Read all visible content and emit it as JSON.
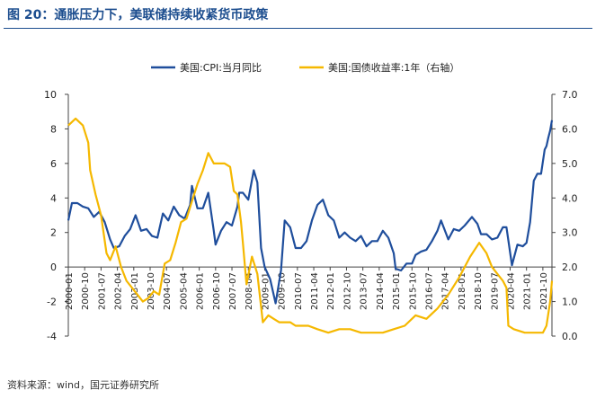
{
  "figure": {
    "title": "图 20：通胀压力下，美联储持续收紧货币政策",
    "source": "资料来源：wind，国元证券研究所"
  },
  "chart_data": {
    "type": "line",
    "title": "图 20：通胀压力下，美联储持续收紧货币政策",
    "xlabel": "",
    "ylabel": "",
    "y2label": "",
    "ylim": [
      -4,
      10
    ],
    "y2lim": [
      0.0,
      7.0
    ],
    "yticks": [
      "-4",
      "-2",
      "0",
      "2",
      "4",
      "6",
      "8",
      "10"
    ],
    "y2ticks": [
      "0.0",
      "1.0",
      "2.0",
      "3.0",
      "4.0",
      "5.0",
      "6.0",
      "7.0"
    ],
    "xlim": [
      "2000-01",
      "2022-03"
    ],
    "xticks": [
      "2000-01",
      "2000-10",
      "2001-07",
      "2002-04",
      "2003-01",
      "2003-10",
      "2004-07",
      "2005-04",
      "2006-01",
      "2006-10",
      "2007-07",
      "2008-04",
      "2009-01",
      "2009-10",
      "2010-07",
      "2011-04",
      "2012-01",
      "2012-10",
      "2013-07",
      "2014-04",
      "2015-01",
      "2015-10",
      "2016-07",
      "2017-04",
      "2018-01",
      "2018-10",
      "2019-07",
      "2020-04",
      "2021-01",
      "2021-10"
    ],
    "legend_position": "top",
    "grid": false,
    "series": [
      {
        "name": "美国:CPI:当月同比",
        "axis": "left",
        "color": "#1f4e9c",
        "points": [
          [
            "2000-01",
            2.7
          ],
          [
            "2000-03",
            3.7
          ],
          [
            "2000-06",
            3.7
          ],
          [
            "2000-09",
            3.5
          ],
          [
            "2000-12",
            3.4
          ],
          [
            "2001-03",
            2.9
          ],
          [
            "2001-06",
            3.2
          ],
          [
            "2001-09",
            2.6
          ],
          [
            "2001-12",
            1.6
          ],
          [
            "2002-02",
            1.1
          ],
          [
            "2002-05",
            1.2
          ],
          [
            "2002-08",
            1.8
          ],
          [
            "2002-11",
            2.2
          ],
          [
            "2003-02",
            3.0
          ],
          [
            "2003-05",
            2.1
          ],
          [
            "2003-08",
            2.2
          ],
          [
            "2003-11",
            1.8
          ],
          [
            "2004-02",
            1.7
          ],
          [
            "2004-05",
            3.1
          ],
          [
            "2004-08",
            2.7
          ],
          [
            "2004-11",
            3.5
          ],
          [
            "2005-02",
            3.0
          ],
          [
            "2005-05",
            2.8
          ],
          [
            "2005-08",
            3.6
          ],
          [
            "2005-09",
            4.7
          ],
          [
            "2005-12",
            3.4
          ],
          [
            "2006-03",
            3.4
          ],
          [
            "2006-06",
            4.3
          ],
          [
            "2006-09",
            2.1
          ],
          [
            "2006-10",
            1.3
          ],
          [
            "2007-01",
            2.1
          ],
          [
            "2007-04",
            2.6
          ],
          [
            "2007-07",
            2.4
          ],
          [
            "2007-10",
            3.5
          ],
          [
            "2007-11",
            4.3
          ],
          [
            "2008-01",
            4.3
          ],
          [
            "2008-04",
            3.9
          ],
          [
            "2008-07",
            5.6
          ],
          [
            "2008-09",
            4.9
          ],
          [
            "2008-11",
            1.1
          ],
          [
            "2009-01",
            0.0
          ],
          [
            "2009-04",
            -0.7
          ],
          [
            "2009-07",
            -2.1
          ],
          [
            "2009-10",
            -0.2
          ],
          [
            "2009-12",
            2.7
          ],
          [
            "2010-03",
            2.3
          ],
          [
            "2010-06",
            1.1
          ],
          [
            "2010-09",
            1.1
          ],
          [
            "2010-12",
            1.5
          ],
          [
            "2011-03",
            2.7
          ],
          [
            "2011-06",
            3.6
          ],
          [
            "2011-09",
            3.9
          ],
          [
            "2011-12",
            3.0
          ],
          [
            "2012-03",
            2.7
          ],
          [
            "2012-06",
            1.7
          ],
          [
            "2012-09",
            2.0
          ],
          [
            "2012-12",
            1.7
          ],
          [
            "2013-03",
            1.5
          ],
          [
            "2013-06",
            1.8
          ],
          [
            "2013-09",
            1.2
          ],
          [
            "2013-12",
            1.5
          ],
          [
            "2014-03",
            1.5
          ],
          [
            "2014-06",
            2.1
          ],
          [
            "2014-09",
            1.7
          ],
          [
            "2014-12",
            0.8
          ],
          [
            "2015-01",
            -0.1
          ],
          [
            "2015-04",
            -0.2
          ],
          [
            "2015-07",
            0.2
          ],
          [
            "2015-10",
            0.2
          ],
          [
            "2015-12",
            0.7
          ],
          [
            "2016-03",
            0.9
          ],
          [
            "2016-06",
            1.0
          ],
          [
            "2016-09",
            1.5
          ],
          [
            "2016-12",
            2.1
          ],
          [
            "2017-02",
            2.7
          ],
          [
            "2017-06",
            1.6
          ],
          [
            "2017-09",
            2.2
          ],
          [
            "2017-12",
            2.1
          ],
          [
            "2018-03",
            2.4
          ],
          [
            "2018-07",
            2.9
          ],
          [
            "2018-10",
            2.5
          ],
          [
            "2018-12",
            1.9
          ],
          [
            "2019-03",
            1.9
          ],
          [
            "2019-06",
            1.6
          ],
          [
            "2019-09",
            1.7
          ],
          [
            "2019-12",
            2.3
          ],
          [
            "2020-02",
            2.3
          ],
          [
            "2020-05",
            0.1
          ],
          [
            "2020-08",
            1.3
          ],
          [
            "2020-11",
            1.2
          ],
          [
            "2021-01",
            1.4
          ],
          [
            "2021-03",
            2.6
          ],
          [
            "2021-05",
            5.0
          ],
          [
            "2021-07",
            5.4
          ],
          [
            "2021-09",
            5.4
          ],
          [
            "2021-11",
            6.8
          ],
          [
            "2021-12",
            7.0
          ],
          [
            "2022-01",
            7.5
          ],
          [
            "2022-02",
            7.9
          ],
          [
            "2022-03",
            8.5
          ]
        ]
      },
      {
        "name": "美国:国债收益率:1年（右轴）",
        "axis": "right",
        "color": "#f5b800",
        "points": [
          [
            "2000-01",
            6.1
          ],
          [
            "2000-05",
            6.3
          ],
          [
            "2000-09",
            6.1
          ],
          [
            "2000-12",
            5.6
          ],
          [
            "2001-01",
            4.8
          ],
          [
            "2001-04",
            4.1
          ],
          [
            "2001-07",
            3.5
          ],
          [
            "2001-10",
            2.4
          ],
          [
            "2001-12",
            2.2
          ],
          [
            "2002-03",
            2.6
          ],
          [
            "2002-06",
            2.0
          ],
          [
            "2002-09",
            1.6
          ],
          [
            "2002-12",
            1.4
          ],
          [
            "2003-03",
            1.2
          ],
          [
            "2003-06",
            1.0
          ],
          [
            "2003-09",
            1.1
          ],
          [
            "2003-12",
            1.3
          ],
          [
            "2004-03",
            1.2
          ],
          [
            "2004-06",
            2.1
          ],
          [
            "2004-09",
            2.2
          ],
          [
            "2004-12",
            2.7
          ],
          [
            "2005-03",
            3.3
          ],
          [
            "2005-06",
            3.4
          ],
          [
            "2005-09",
            3.9
          ],
          [
            "2005-12",
            4.4
          ],
          [
            "2006-03",
            4.8
          ],
          [
            "2006-06",
            5.3
          ],
          [
            "2006-09",
            5.0
          ],
          [
            "2006-12",
            5.0
          ],
          [
            "2007-03",
            5.0
          ],
          [
            "2007-06",
            4.9
          ],
          [
            "2007-08",
            4.2
          ],
          [
            "2007-10",
            4.1
          ],
          [
            "2007-12",
            3.3
          ],
          [
            "2008-01",
            2.7
          ],
          [
            "2008-03",
            1.5
          ],
          [
            "2008-06",
            2.3
          ],
          [
            "2008-09",
            1.8
          ],
          [
            "2008-12",
            0.4
          ],
          [
            "2009-03",
            0.6
          ],
          [
            "2009-06",
            0.5
          ],
          [
            "2009-09",
            0.4
          ],
          [
            "2009-12",
            0.4
          ],
          [
            "2010-03",
            0.4
          ],
          [
            "2010-06",
            0.3
          ],
          [
            "2010-09",
            0.3
          ],
          [
            "2011-01",
            0.3
          ],
          [
            "2011-06",
            0.2
          ],
          [
            "2011-12",
            0.1
          ],
          [
            "2012-06",
            0.2
          ],
          [
            "2012-12",
            0.2
          ],
          [
            "2013-06",
            0.1
          ],
          [
            "2013-12",
            0.1
          ],
          [
            "2014-06",
            0.1
          ],
          [
            "2014-12",
            0.2
          ],
          [
            "2015-06",
            0.3
          ],
          [
            "2015-12",
            0.6
          ],
          [
            "2016-06",
            0.5
          ],
          [
            "2016-12",
            0.8
          ],
          [
            "2017-06",
            1.2
          ],
          [
            "2017-12",
            1.7
          ],
          [
            "2018-06",
            2.3
          ],
          [
            "2018-11",
            2.7
          ],
          [
            "2019-03",
            2.4
          ],
          [
            "2019-06",
            2.0
          ],
          [
            "2019-09",
            1.8
          ],
          [
            "2019-12",
            1.6
          ],
          [
            "2020-02",
            1.4
          ],
          [
            "2020-03",
            0.3
          ],
          [
            "2020-06",
            0.2
          ],
          [
            "2020-12",
            0.1
          ],
          [
            "2021-06",
            0.1
          ],
          [
            "2021-10",
            0.1
          ],
          [
            "2021-12",
            0.3
          ],
          [
            "2022-02",
            1.0
          ],
          [
            "2022-03",
            1.6
          ]
        ]
      }
    ]
  }
}
